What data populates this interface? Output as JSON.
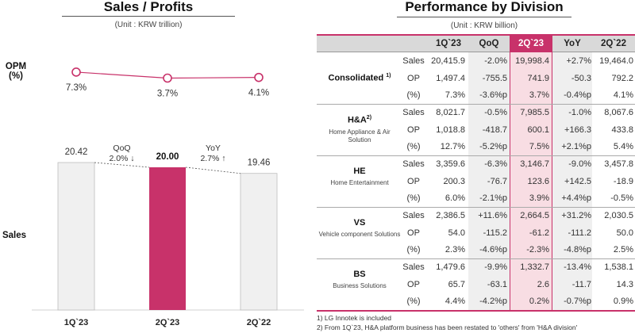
{
  "left_panel": {
    "title": "Sales / Profits",
    "unit": "(Unit : KRW trillion)",
    "opm_label_line1": "OPM",
    "opm_label_line2": "(%)",
    "sales_label": "Sales",
    "qoq": {
      "label": "QoQ",
      "value": "2.0% ↓"
    },
    "yoy": {
      "label": "YoY",
      "value": "2.7% ↑"
    }
  },
  "chart_data": {
    "type": "bar",
    "title": "Sales / Profits",
    "subtitle": "(Unit : KRW trillion)",
    "categories": [
      "1Q`23",
      "2Q`23",
      "2Q`22"
    ],
    "series": [
      {
        "name": "Sales",
        "values": [
          20.42,
          20.0,
          19.46
        ],
        "labels": [
          "20.42",
          "20.00",
          "19.46"
        ],
        "highlight": [
          false,
          true,
          false
        ]
      },
      {
        "name": "OPM (%)",
        "type": "line",
        "values": [
          7.3,
          3.7,
          4.1
        ],
        "labels": [
          "7.3%",
          "3.7%",
          "4.1%"
        ]
      }
    ],
    "annotations": [
      {
        "text": "QoQ 2.0% ↓",
        "between": [
          "1Q`23",
          "2Q`23"
        ]
      },
      {
        "text": "YoY 2.7% ↑",
        "between": [
          "2Q`23",
          "2Q`22"
        ]
      }
    ],
    "colors": {
      "highlight_bar": "#c8326a",
      "bar": "#f0f0f0",
      "line": "#c8326a"
    }
  },
  "right_panel": {
    "title": "Performance by Division",
    "unit": "(Unit : KRW billion)",
    "columns": [
      "1Q`23",
      "QoQ",
      "2Q`23",
      "YoY",
      "2Q`22"
    ],
    "groups": [
      {
        "name": "Consolidated",
        "sup": "1)",
        "sub": "",
        "rows": [
          {
            "metric": "Sales",
            "values": [
              "20,415.9",
              "-2.0%",
              "19,998.4",
              "+2.7%",
              "19,464.0"
            ]
          },
          {
            "metric": "OP",
            "values": [
              "1,497.4",
              "-755.5",
              "741.9",
              "-50.3",
              "792.2"
            ]
          },
          {
            "metric": "(%)",
            "values": [
              "7.3%",
              "-3.6%p",
              "3.7%",
              "-0.4%p",
              "4.1%"
            ]
          }
        ]
      },
      {
        "name": "H&A",
        "sup": "2)",
        "sub": "Home Appliance & Air Solution",
        "rows": [
          {
            "metric": "Sales",
            "values": [
              "8,021.7",
              "-0.5%",
              "7,985.5",
              "-1.0%",
              "8,067.6"
            ]
          },
          {
            "metric": "OP",
            "values": [
              "1,018.8",
              "-418.7",
              "600.1",
              "+166.3",
              "433.8"
            ]
          },
          {
            "metric": "(%)",
            "values": [
              "12.7%",
              "-5.2%p",
              "7.5%",
              "+2.1%p",
              "5.4%"
            ]
          }
        ]
      },
      {
        "name": "HE",
        "sup": "",
        "sub": "Home Entertainment",
        "rows": [
          {
            "metric": "Sales",
            "values": [
              "3,359.6",
              "-6.3%",
              "3,146.7",
              "-9.0%",
              "3,457.8"
            ]
          },
          {
            "metric": "OP",
            "values": [
              "200.3",
              "-76.7",
              "123.6",
              "+142.5",
              "-18.9"
            ]
          },
          {
            "metric": "(%)",
            "values": [
              "6.0%",
              "-2.1%p",
              "3.9%",
              "+4.4%p",
              "-0.5%"
            ]
          }
        ]
      },
      {
        "name": "VS",
        "sup": "",
        "sub": "Vehicle component Solutions",
        "rows": [
          {
            "metric": "Sales",
            "values": [
              "2,386.5",
              "+11.6%",
              "2,664.5",
              "+31.2%",
              "2,030.5"
            ]
          },
          {
            "metric": "OP",
            "values": [
              "54.0",
              "-115.2",
              "-61.2",
              "-111.2",
              "50.0"
            ]
          },
          {
            "metric": "(%)",
            "values": [
              "2.3%",
              "-4.6%p",
              "-2.3%",
              "-4.8%p",
              "2.5%"
            ]
          }
        ]
      },
      {
        "name": "BS",
        "sup": "",
        "sub": "Business Solutions",
        "rows": [
          {
            "metric": "Sales",
            "values": [
              "1,479.6",
              "-9.9%",
              "1,332.7",
              "-13.4%",
              "1,538.1"
            ]
          },
          {
            "metric": "OP",
            "values": [
              "65.7",
              "-63.1",
              "2.6",
              "-11.7",
              "14.3"
            ]
          },
          {
            "metric": "(%)",
            "values": [
              "4.4%",
              "-4.2%p",
              "0.2%",
              "-0.7%p",
              "0.9%"
            ]
          }
        ]
      }
    ],
    "footnotes": [
      "1) LG Innotek is included",
      "2) From 1Q`23, H&A platform business has been restated to 'others' from 'H&A division'"
    ]
  }
}
